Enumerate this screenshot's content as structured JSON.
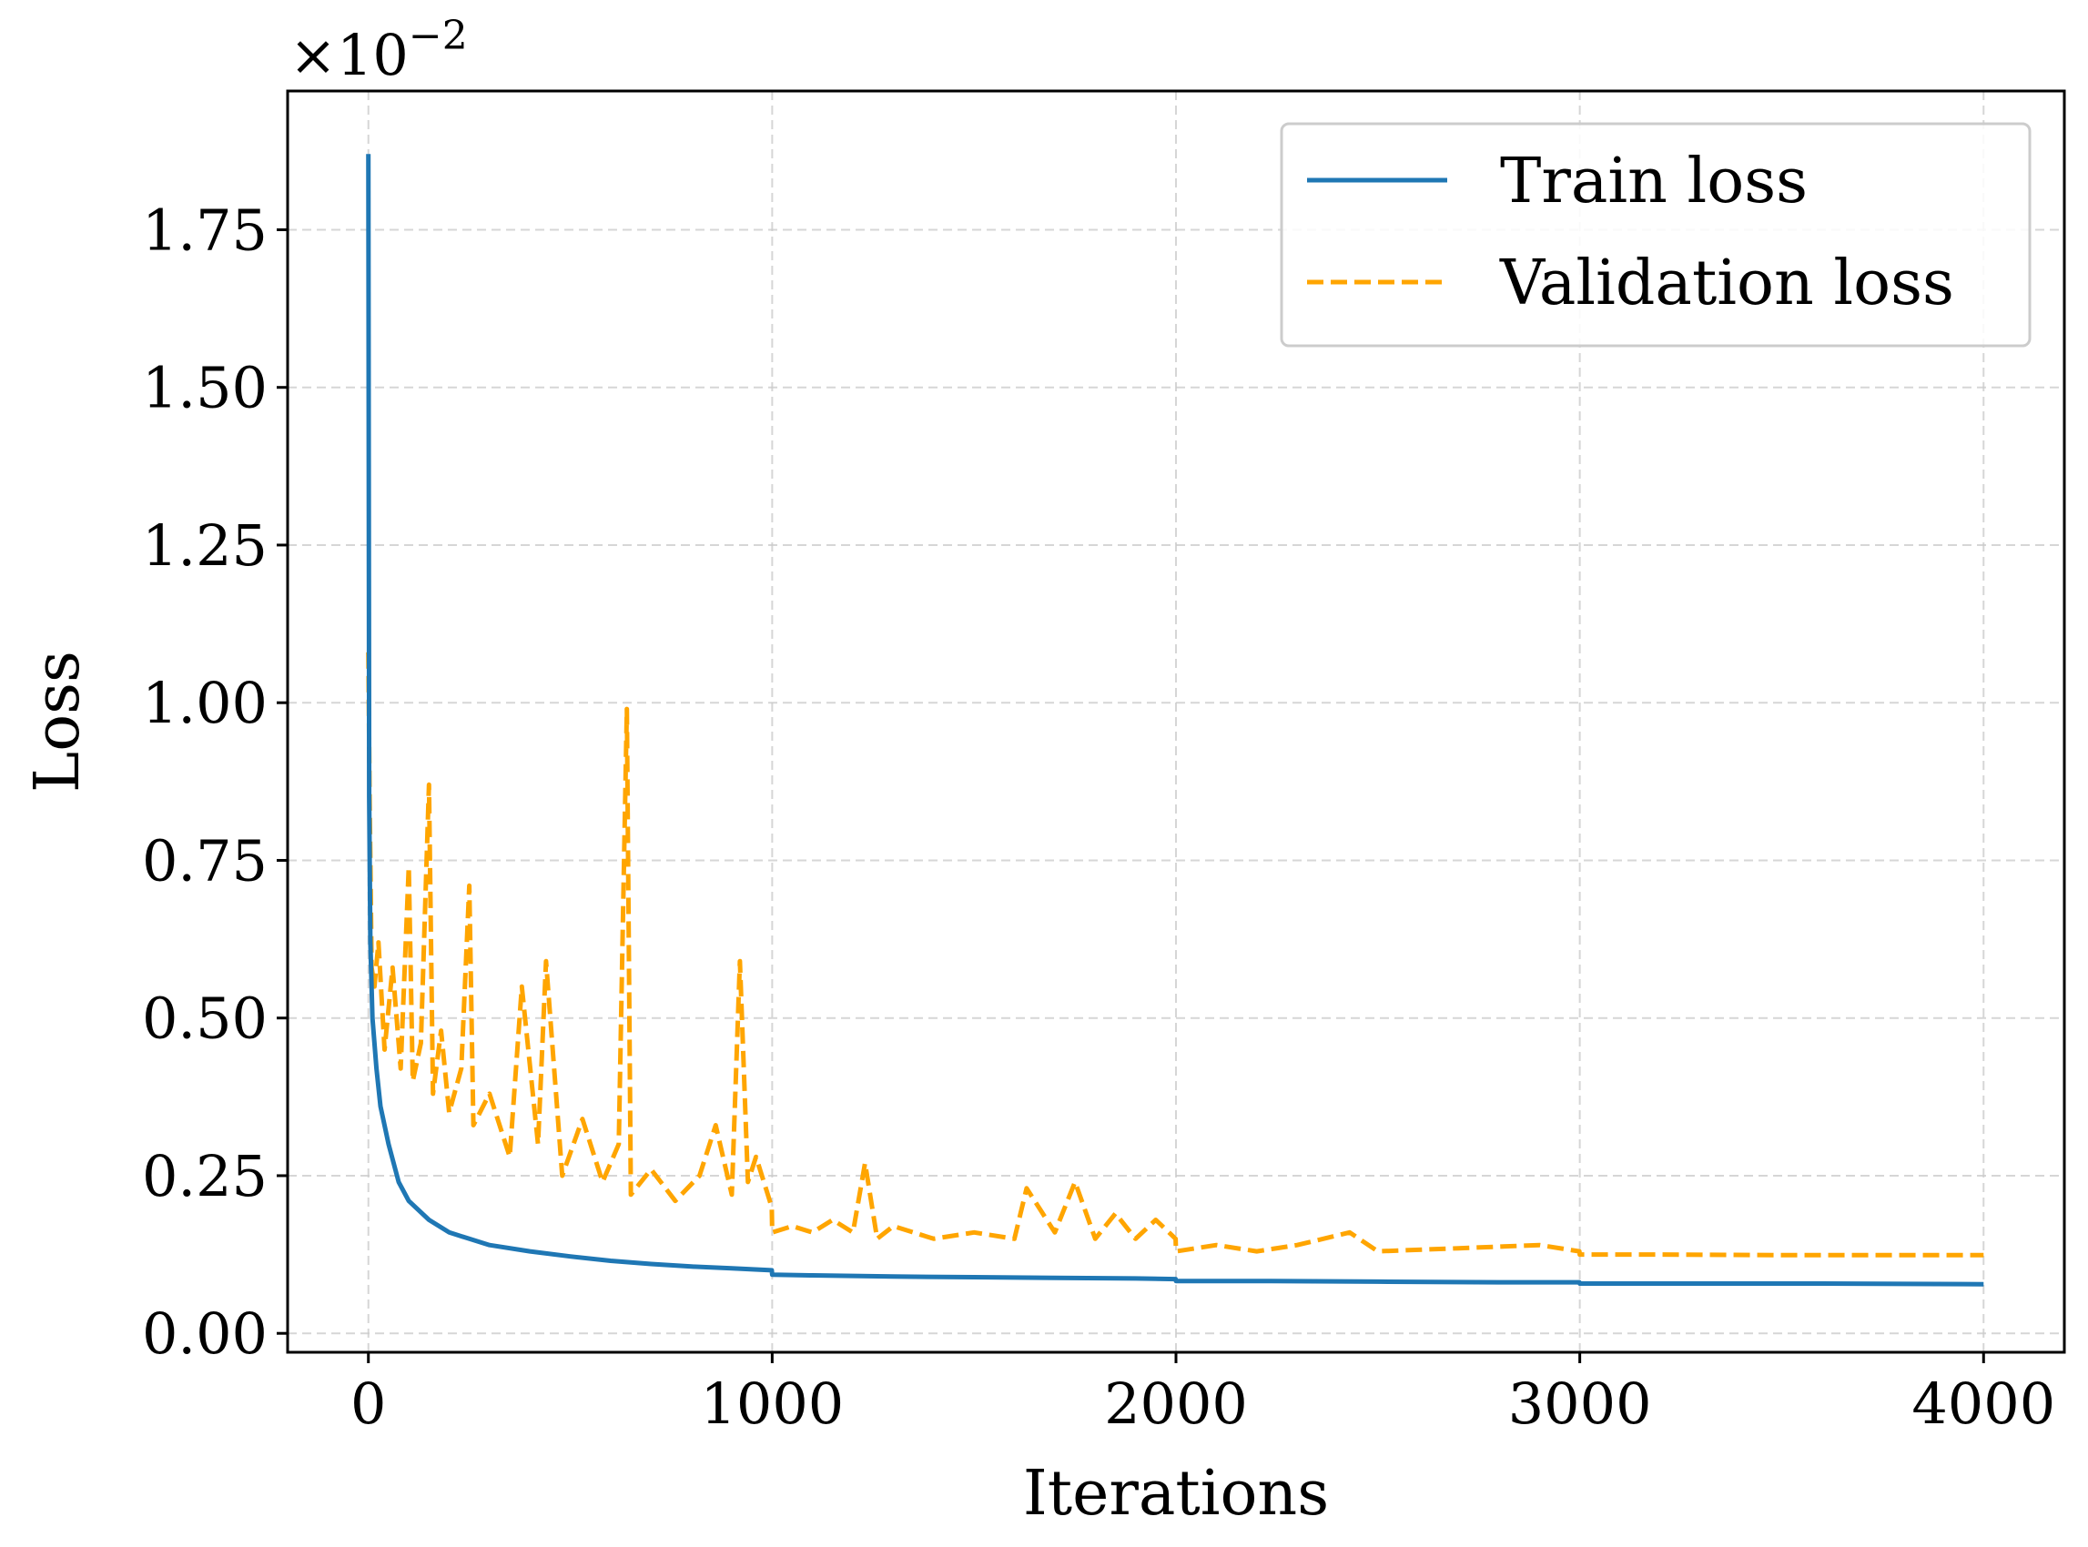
{
  "chart_data": {
    "type": "line",
    "title": "",
    "xlabel": "Iterations",
    "ylabel": "Loss",
    "xlim": [
      -200,
      4200
    ],
    "ylim": [
      -0.0003,
      0.0197
    ],
    "y_offset_label": "×10",
    "y_offset_exponent": "−2",
    "x_ticks": [
      0,
      1000,
      2000,
      3000,
      4000
    ],
    "x_tick_labels": [
      "0",
      "1000",
      "2000",
      "3000",
      "4000"
    ],
    "y_ticks": [
      0.0,
      0.0025,
      0.005,
      0.0075,
      0.01,
      0.0125,
      0.015,
      0.0175
    ],
    "y_tick_labels": [
      "0.00",
      "0.25",
      "0.50",
      "0.75",
      "1.00",
      "1.25",
      "1.50",
      "1.75"
    ],
    "grid": true,
    "legend_position": "top-right",
    "series": [
      {
        "name": "Train loss",
        "style": "solid",
        "color": "#1f77b4",
        "x": [
          0,
          2,
          5,
          10,
          20,
          30,
          50,
          75,
          100,
          150,
          200,
          250,
          300,
          400,
          500,
          600,
          700,
          800,
          900,
          999,
          1000,
          1100,
          1300,
          1500,
          1700,
          1900,
          1999,
          2000,
          2200,
          2500,
          2800,
          2999,
          3000,
          3300,
          3600,
          4000
        ],
        "values": [
          0.0187,
          0.0085,
          0.0062,
          0.005,
          0.0042,
          0.0036,
          0.003,
          0.0024,
          0.0021,
          0.0018,
          0.0016,
          0.0015,
          0.0014,
          0.0013,
          0.00122,
          0.00115,
          0.0011,
          0.00106,
          0.00103,
          0.001,
          0.00093,
          0.00092,
          0.0009,
          0.00089,
          0.00088,
          0.00087,
          0.00086,
          0.00083,
          0.00083,
          0.00082,
          0.00081,
          0.00081,
          0.00079,
          0.00079,
          0.00079,
          0.00078
        ]
      },
      {
        "name": "Validation loss",
        "style": "dashed",
        "color": "#ffa500",
        "x": [
          0,
          3,
          8,
          15,
          25,
          40,
          60,
          80,
          100,
          110,
          130,
          150,
          160,
          180,
          200,
          230,
          250,
          260,
          300,
          350,
          380,
          420,
          440,
          480,
          530,
          580,
          620,
          640,
          650,
          700,
          760,
          820,
          860,
          900,
          920,
          940,
          960,
          999,
          1000,
          1050,
          1100,
          1150,
          1200,
          1230,
          1260,
          1300,
          1400,
          1500,
          1600,
          1630,
          1700,
          1750,
          1800,
          1850,
          1900,
          1950,
          1999,
          2000,
          2100,
          2200,
          2300,
          2430,
          2500,
          2700,
          2900,
          2999,
          3000,
          3200,
          3500,
          3800,
          4000
        ],
        "values": [
          0.0108,
          0.0085,
          0.0058,
          0.0055,
          0.0062,
          0.0045,
          0.0058,
          0.0042,
          0.0074,
          0.004,
          0.0046,
          0.0087,
          0.0038,
          0.0048,
          0.0035,
          0.0042,
          0.0071,
          0.0033,
          0.0038,
          0.0028,
          0.0055,
          0.003,
          0.0059,
          0.0025,
          0.0034,
          0.0024,
          0.003,
          0.0099,
          0.0022,
          0.0026,
          0.0021,
          0.0025,
          0.0033,
          0.0022,
          0.0059,
          0.0024,
          0.0028,
          0.002,
          0.0016,
          0.0017,
          0.0016,
          0.0018,
          0.0016,
          0.0027,
          0.0015,
          0.0017,
          0.0015,
          0.0016,
          0.0015,
          0.0023,
          0.0016,
          0.0024,
          0.0015,
          0.0019,
          0.0015,
          0.0018,
          0.0015,
          0.0013,
          0.0014,
          0.0013,
          0.0014,
          0.0016,
          0.0013,
          0.00135,
          0.0014,
          0.0013,
          0.00125,
          0.00125,
          0.00124,
          0.00124,
          0.00124
        ]
      }
    ]
  }
}
